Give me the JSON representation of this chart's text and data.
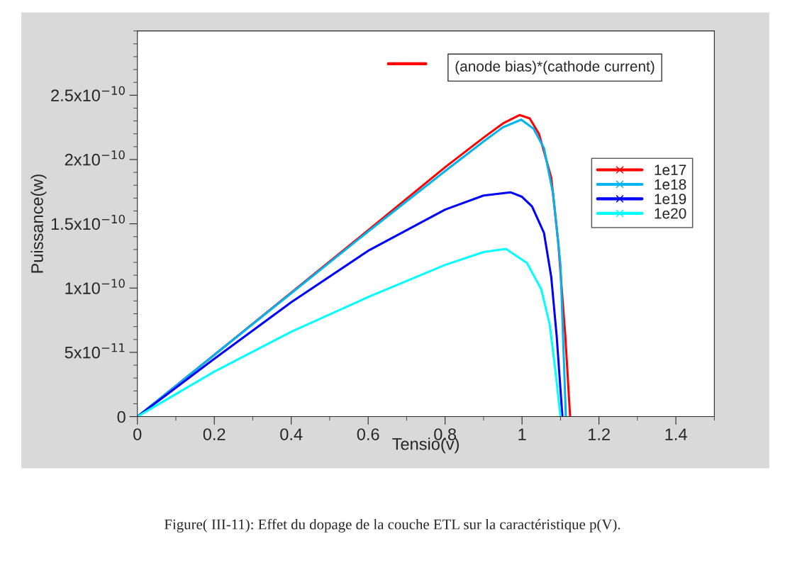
{
  "chart_data": {
    "type": "line",
    "xlabel": "Tensio(v)",
    "ylabel": "Puissance(w)",
    "xlim": [
      0,
      1.5
    ],
    "xticks": [
      0,
      0.2,
      0.4,
      0.6,
      0.8,
      1,
      1.2,
      1.4
    ],
    "ylim": [
      0,
      3e-10
    ],
    "yticks": [
      0,
      {
        "value": 5e-11,
        "label": "5x10$^{−11}$"
      },
      {
        "value": 1e-10,
        "label": "1x10$^{−10}$"
      },
      {
        "value": 1.5e-10,
        "label": "1.5x10$^{−10}$"
      },
      {
        "value": 2e-10,
        "label": "2x10$^{−10}$"
      },
      {
        "value": 2.5e-10,
        "label": "2.5x10$^{−10}$"
      }
    ],
    "grid": false,
    "legend": "right",
    "annotations": [
      "(anode bias)*(cathode current)",
      "Figure( III-11): Effet du dopage de la couche ETL sur la caractéristique p(V)."
    ],
    "series": [
      {
        "name": "1e17",
        "color": "#ff0000",
        "x": [
          0,
          0.2,
          0.4,
          0.6,
          0.8,
          0.9,
          0.95,
          0.994,
          1.02,
          1.044,
          1.076,
          1.094,
          1.1125,
          1.125
        ],
        "values": [
          0,
          4.8e-11,
          9.65e-11,
          1.45e-10,
          1.94e-10,
          2.17e-10,
          2.28e-10,
          2.346e-10,
          2.32e-10,
          2.2e-10,
          1.86e-10,
          1.36e-10,
          6.3e-11,
          0
        ]
      },
      {
        "name": "1e18",
        "color": "#00b4f0",
        "x": [
          0,
          0.2,
          0.4,
          0.6,
          0.8,
          0.9,
          0.95,
          0.998,
          1.03,
          1.057,
          1.081,
          1.1,
          1.114
        ],
        "values": [
          0,
          4.8e-11,
          9.6e-11,
          1.44e-10,
          1.91e-10,
          2.14e-10,
          2.25e-10,
          2.31e-10,
          2.24e-10,
          2.09e-10,
          1.73e-10,
          1.18e-10,
          0
        ]
      },
      {
        "name": "1e19",
        "color": "#0000ff",
        "x": [
          0,
          0.2,
          0.4,
          0.6,
          0.8,
          0.9,
          0.97,
          1.0,
          1.026,
          1.057,
          1.076,
          1.09,
          1.105
        ],
        "values": [
          0,
          4.5e-11,
          8.9e-11,
          1.29e-10,
          1.61e-10,
          1.72e-10,
          1.745e-10,
          1.71e-10,
          1.635e-10,
          1.43e-10,
          1.085e-10,
          6.3e-11,
          0
        ]
      },
      {
        "name": "1e20",
        "color": "#00ffff",
        "x": [
          0,
          0.2,
          0.4,
          0.6,
          0.8,
          0.9,
          0.958,
          1.013,
          1.05,
          1.072,
          1.087,
          1.1
        ],
        "values": [
          0,
          3.5e-11,
          6.6e-11,
          9.3e-11,
          1.18e-10,
          1.28e-10,
          1.305e-10,
          1.195e-10,
          9.9e-11,
          7.16e-11,
          3.5e-11,
          0
        ]
      }
    ]
  }
}
